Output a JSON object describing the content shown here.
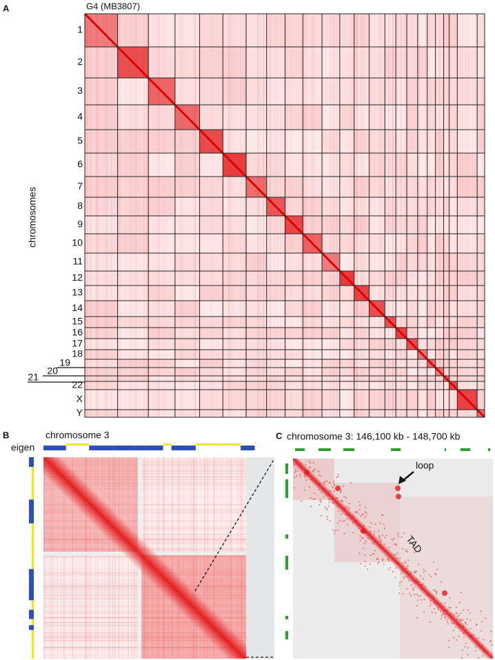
{
  "panel_a": {
    "label": "A",
    "title": "G4 (MB3807)",
    "y_axis_label": "chromosomes",
    "chromosomes": [
      "1",
      "2",
      "3",
      "4",
      "5",
      "6",
      "7",
      "8",
      "9",
      "10",
      "11",
      "12",
      "13",
      "14",
      "15",
      "16",
      "17",
      "18",
      "19",
      "20",
      "21",
      "22",
      "X",
      "Y"
    ]
  },
  "panel_b": {
    "label": "B",
    "title": "chromosome 3",
    "track_label": "eigen"
  },
  "panel_c": {
    "label": "C",
    "title": "chromosome 3: 146,100 kb - 148,700 kb",
    "annotations": {
      "loop": "loop",
      "tad": "TAD"
    }
  }
}
